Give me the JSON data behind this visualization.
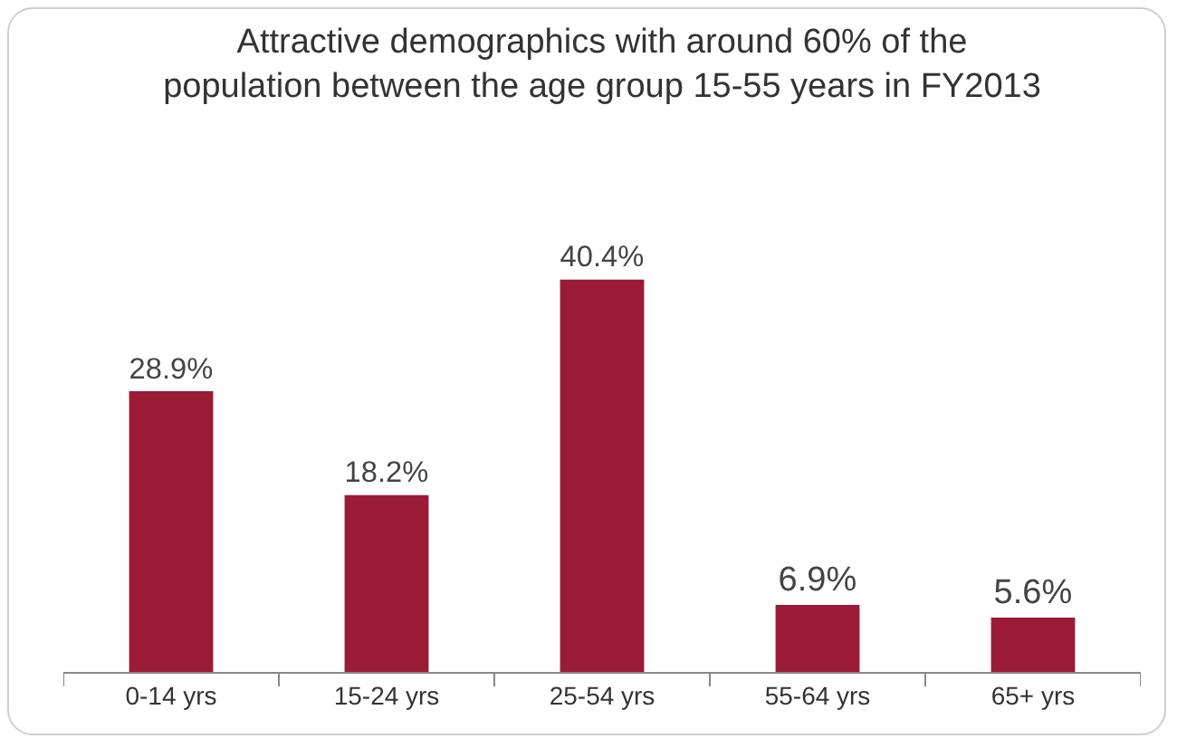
{
  "chart_data": {
    "type": "bar",
    "title": "Attractive demographics with around 60% of the\npopulation between the age group 15-55 years in FY2013",
    "categories": [
      "0-14 yrs",
      "15-24 yrs",
      "25-54 yrs",
      "55-64 yrs",
      "65+ yrs"
    ],
    "values": [
      28.9,
      18.2,
      40.4,
      6.9,
      5.6
    ],
    "value_labels": [
      "28.9%",
      "18.2%",
      "40.4%",
      "6.9%",
      "5.6%"
    ],
    "color": "#9b1b36",
    "legend": false
  }
}
